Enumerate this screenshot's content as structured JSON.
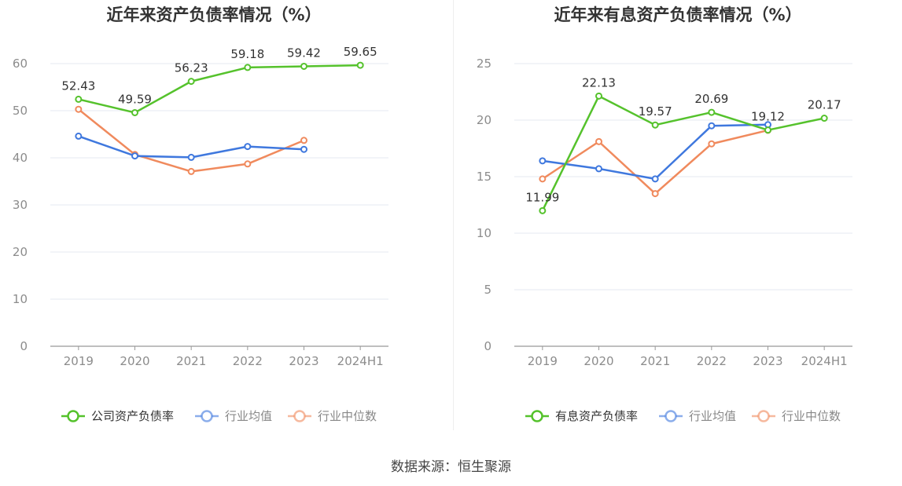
{
  "colors": {
    "green": "#55c22c",
    "blue": "#3f78de",
    "orange": "#f08a5d",
    "grid": "#e6e9f2",
    "axis": "#999999",
    "tick_text": "#8c8c8c",
    "title": "#333333"
  },
  "source_text": "数据来源：恒生聚源",
  "chart_data": [
    {
      "type": "line",
      "title": "近年来资产负债率情况（%）",
      "categories": [
        "2019",
        "2020",
        "2021",
        "2022",
        "2023",
        "2024H1"
      ],
      "ylim": [
        0,
        60
      ],
      "yticks": [
        0,
        10,
        20,
        30,
        40,
        50,
        60
      ],
      "grid": true,
      "legend_position": "bottom",
      "series": [
        {
          "name": "公司资产负债率",
          "color": "#55c22c",
          "labels": true,
          "values": [
            52.43,
            49.59,
            56.23,
            59.18,
            59.42,
            59.65
          ]
        },
        {
          "name": "行业均值",
          "color": "#3f78de",
          "labels": false,
          "values": [
            44.6,
            40.4,
            40.1,
            42.4,
            41.8,
            null
          ]
        },
        {
          "name": "行业中位数",
          "color": "#f08a5d",
          "labels": false,
          "values": [
            50.3,
            40.7,
            37.1,
            38.7,
            43.7,
            null
          ]
        }
      ]
    },
    {
      "type": "line",
      "title": "近年来有息资产负债率情况（%）",
      "categories": [
        "2019",
        "2020",
        "2021",
        "2022",
        "2023",
        "2024H1"
      ],
      "ylim": [
        0,
        25
      ],
      "yticks": [
        0,
        5,
        10,
        15,
        20,
        25
      ],
      "grid": true,
      "legend_position": "bottom",
      "series": [
        {
          "name": "有息资产负债率",
          "color": "#55c22c",
          "labels": true,
          "values": [
            11.99,
            22.13,
            19.57,
            20.69,
            19.12,
            20.17
          ]
        },
        {
          "name": "行业均值",
          "color": "#3f78de",
          "labels": false,
          "values": [
            16.4,
            15.7,
            14.8,
            19.5,
            19.6,
            null
          ]
        },
        {
          "name": "行业中位数",
          "color": "#f08a5d",
          "labels": false,
          "values": [
            14.8,
            18.1,
            13.5,
            17.9,
            19.1,
            null
          ]
        }
      ]
    }
  ]
}
